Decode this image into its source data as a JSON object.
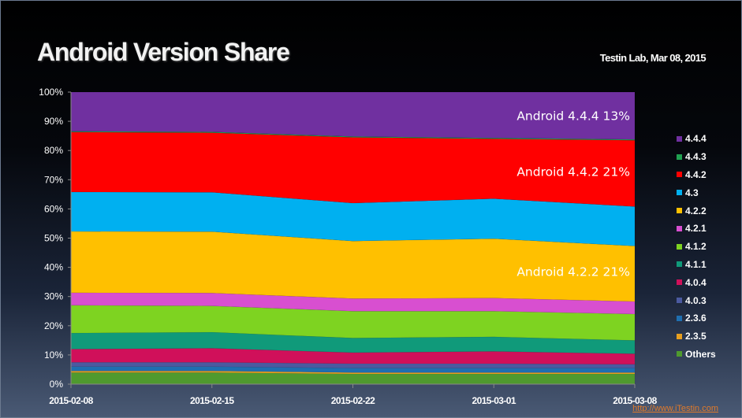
{
  "header": {
    "title": "Android Version Share",
    "subtitle": "Testin Lab, Mar 08, 2015"
  },
  "credit": "http://www.iTestin.com",
  "chart_data": {
    "type": "area",
    "stacked": true,
    "title": "Android Version Share",
    "x": [
      "2015-02-08",
      "2015-02-15",
      "2015-02-22",
      "2015-03-01",
      "2015-03-08"
    ],
    "ylim": [
      0,
      100
    ],
    "yticks": [
      "0%",
      "10%",
      "20%",
      "30%",
      "40%",
      "50%",
      "60%",
      "70%",
      "80%",
      "90%",
      "100%"
    ],
    "grid": false,
    "legend_position": "right",
    "series": [
      {
        "name": "Others",
        "color": "#4f9a2e",
        "values": [
          4.0,
          4.0,
          3.5,
          3.5,
          3.5
        ]
      },
      {
        "name": "2.3.5",
        "color": "#e8a020",
        "values": [
          0.5,
          0.5,
          0.5,
          0.5,
          0.5
        ]
      },
      {
        "name": "2.3.6",
        "color": "#1f6fb0",
        "values": [
          1.5,
          1.5,
          1.5,
          1.5,
          1.5
        ]
      },
      {
        "name": "4.0.3",
        "color": "#4b5aa0",
        "values": [
          1.5,
          1.5,
          1.5,
          1.5,
          1.3
        ]
      },
      {
        "name": "4.0.4",
        "color": "#d0105a",
        "values": [
          4.5,
          4.8,
          3.8,
          4.2,
          3.6
        ]
      },
      {
        "name": "4.1.1",
        "color": "#109a7a",
        "values": [
          5.5,
          5.5,
          5.0,
          5.0,
          4.6
        ]
      },
      {
        "name": "4.1.2",
        "color": "#7ed321",
        "values": [
          9.5,
          9.0,
          9.2,
          8.8,
          9.0
        ]
      },
      {
        "name": "4.2.1",
        "color": "#d84fd0",
        "values": [
          4.3,
          4.4,
          4.3,
          4.5,
          4.3
        ]
      },
      {
        "name": "4.2.2",
        "color": "#ffc000",
        "values": [
          21.0,
          21.0,
          19.7,
          20.3,
          19.0
        ]
      },
      {
        "name": "4.3",
        "color": "#00b0f0",
        "values": [
          13.5,
          13.5,
          13.0,
          13.7,
          13.5
        ]
      },
      {
        "name": "4.4.2",
        "color": "#ff0000",
        "values": [
          20.5,
          20.4,
          22.5,
          20.5,
          22.7
        ]
      },
      {
        "name": "4.4.3",
        "color": "#20a050",
        "values": [
          0.3,
          0.3,
          0.3,
          0.3,
          0.3
        ]
      },
      {
        "name": "4.4.4",
        "color": "#7030a0",
        "values": [
          13.4,
          13.6,
          15.2,
          15.7,
          16.2
        ]
      }
    ],
    "annotations": [
      {
        "text": "Android 4.4.4  13%",
        "series": "4.4.4"
      },
      {
        "text": "Android 4.4.2  21%",
        "series": "4.4.2"
      },
      {
        "text": "Android 4.2.2  21%",
        "series": "4.2.2"
      }
    ]
  }
}
